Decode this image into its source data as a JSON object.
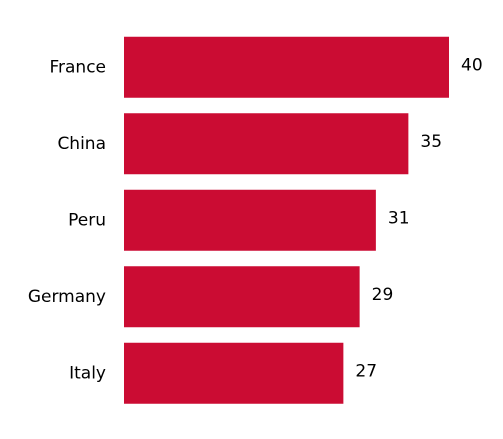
{
  "chart_data": {
    "type": "bar",
    "orientation": "horizontal",
    "categories": [
      "France",
      "China",
      "Peru",
      "Germany",
      "Italy"
    ],
    "values": [
      40,
      35,
      31,
      29,
      27
    ],
    "color": "#cb0c33"
  }
}
